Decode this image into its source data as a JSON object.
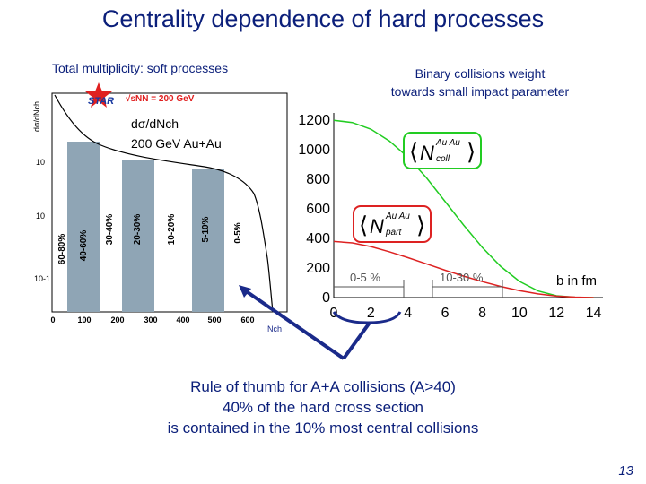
{
  "title": "Centrality dependence of hard processes",
  "left_subtitle": "Total multiplicity: soft processes",
  "right_subtitle": [
    "Binary collisions weight",
    "towards small impact parameter"
  ],
  "rule_lines": [
    "Rule of thumb for A+A collisions (A>40)",
    "40% of the hard cross section",
    "is contained in the 10% most central collisions"
  ],
  "page_number": "13",
  "colors": {
    "title": "#0b1f7a",
    "ncoll": "#22cc22",
    "npart": "#dd2222",
    "band": "#8fa5b5",
    "arrow": "#1a2a8a"
  },
  "left_plot": {
    "logo": "STAR",
    "energy_label": "√sNN = 200 GeV",
    "ylabel": "dσ/dNch",
    "xlabel": "Nch",
    "annotation": [
      "dσ/dNch",
      "200 GeV Au+Au"
    ],
    "x_ticks": [
      "0",
      "100",
      "200",
      "300",
      "400",
      "500",
      "600"
    ],
    "y_ticks": [
      "10-1",
      "10",
      "10"
    ],
    "bins": [
      "60-80%",
      "40-60%",
      "30-40%",
      "20-30%",
      "10-20%",
      "5-10%",
      "0-5%"
    ]
  },
  "chart_data": {
    "type": "line",
    "xlabel": "b in fm",
    "x_ticks": [
      "0",
      "2",
      "4",
      "6",
      "8",
      "10",
      "12",
      "14"
    ],
    "y_ticks": [
      "0",
      "200",
      "400",
      "600",
      "800",
      "1000",
      "1200"
    ],
    "xlim": [
      0,
      14.5
    ],
    "ylim": [
      0,
      1250
    ],
    "series": [
      {
        "name": "⟨N coll⟩ Au Au",
        "label_main": "N",
        "label_sub": "coll",
        "label_sup": "Au Au",
        "color": "#22cc22",
        "x": [
          0,
          1,
          2,
          3,
          4,
          5,
          6,
          7,
          8,
          9,
          10,
          11,
          12,
          13,
          14
        ],
        "y": [
          1200,
          1185,
          1140,
          1060,
          950,
          810,
          650,
          490,
          340,
          210,
          110,
          45,
          12,
          2,
          0
        ]
      },
      {
        "name": "⟨N part⟩ Au Au",
        "label_main": "N",
        "label_sub": "part",
        "label_sup": "Au Au",
        "color": "#dd2222",
        "x": [
          0,
          1,
          2,
          3,
          4,
          5,
          6,
          7,
          8,
          9,
          10,
          11,
          12,
          13,
          14
        ],
        "y": [
          380,
          370,
          345,
          310,
          270,
          228,
          185,
          145,
          108,
          75,
          47,
          25,
          10,
          3,
          0
        ]
      }
    ],
    "annotations": [
      "0-5 %",
      "10-30 %"
    ]
  }
}
